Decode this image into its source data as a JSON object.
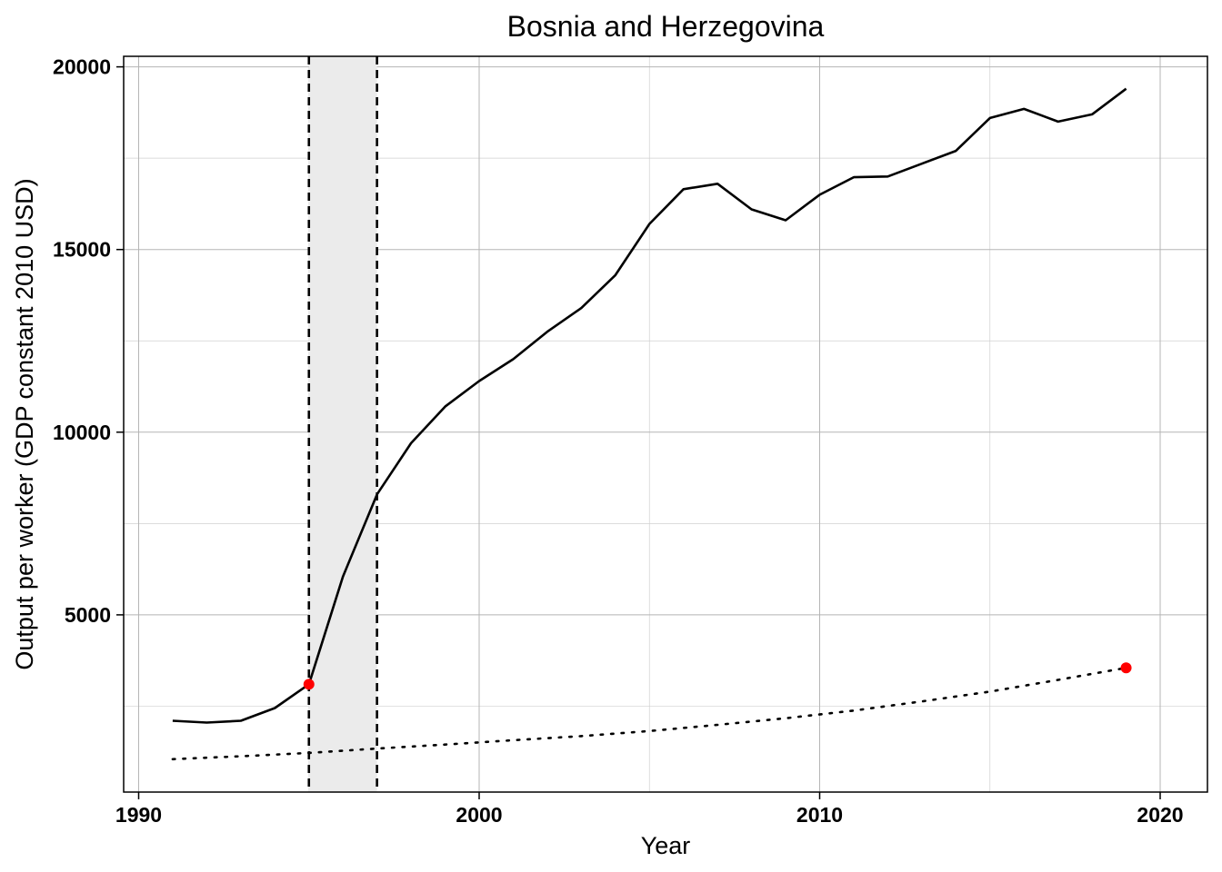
{
  "chart_data": {
    "type": "line",
    "title": "Bosnia and Herzegovina",
    "xlabel": "Year",
    "ylabel": "Output per worker (GDP constant 2010 USD)",
    "xlim": [
      1990,
      2021
    ],
    "ylim": [
      0,
      20300
    ],
    "x_ticks": [
      1990,
      2000,
      2010,
      2020
    ],
    "y_ticks": [
      5000,
      10000,
      15000,
      20000
    ],
    "grid": true,
    "shaded_interval": [
      1995,
      1997
    ],
    "series": [
      {
        "style": "solid",
        "color": "#000000",
        "x": [
          1991,
          1992,
          1993,
          1994,
          1995,
          1996,
          1997,
          1998,
          1999,
          2000,
          2001,
          2002,
          2003,
          2004,
          2005,
          2006,
          2007,
          2008,
          2009,
          2010,
          2011,
          2012,
          2013,
          2014,
          2015,
          2016,
          2017,
          2018,
          2019
        ],
        "y": [
          2100,
          2050,
          2100,
          2450,
          3100,
          6050,
          8300,
          9700,
          10700,
          11400,
          12000,
          12750,
          13400,
          14300,
          15700,
          16650,
          16800,
          16100,
          15800,
          16500,
          16980,
          17000,
          17350,
          17700,
          18600,
          18850,
          18500,
          18700,
          19400
        ]
      },
      {
        "style": "dotted",
        "color": "#000000",
        "x": [
          1991,
          1993,
          1995,
          1997,
          1999,
          2001,
          2003,
          2005,
          2007,
          2009,
          2011,
          2013,
          2015,
          2017,
          2019
        ],
        "y": [
          1050,
          1130,
          1220,
          1340,
          1450,
          1570,
          1680,
          1820,
          1990,
          2170,
          2380,
          2630,
          2900,
          3220,
          3550
        ]
      }
    ],
    "highlight_points": [
      {
        "x": 1995,
        "y": 3100,
        "color": "#ff0000"
      },
      {
        "x": 2019,
        "y": 3550,
        "color": "#ff0000"
      }
    ]
  }
}
